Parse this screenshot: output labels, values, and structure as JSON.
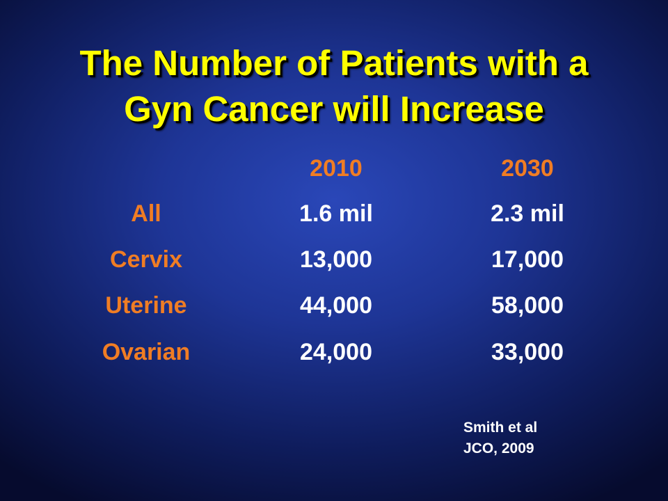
{
  "slide": {
    "title_lines": [
      "The Number of Patients with a",
      "Gyn Cancer will Increase"
    ],
    "table": {
      "headers": [
        "2010",
        "2030"
      ],
      "rows": [
        {
          "label": "All",
          "v2010": "1.6 mil",
          "v2030": "2.3 mil"
        },
        {
          "label": "Cervix",
          "v2010": "13,000",
          "v2030": "17,000"
        },
        {
          "label": "Uterine",
          "v2010": "44,000",
          "v2030": "58,000"
        },
        {
          "label": "Ovarian",
          "v2010": "24,000",
          "v2030": "33,000"
        }
      ]
    },
    "citation_lines": [
      "Smith et al",
      "JCO, 2009"
    ]
  },
  "colors": {
    "title": "#ffff00",
    "labels": "#f07d24",
    "values": "#ffffff",
    "background": "#1e3596"
  }
}
